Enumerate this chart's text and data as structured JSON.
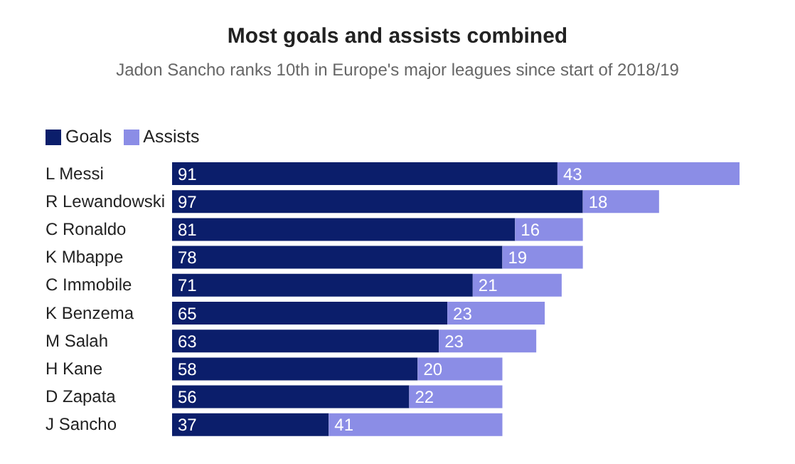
{
  "chart_data": {
    "type": "bar",
    "orientation": "horizontal",
    "stacked": true,
    "title": "Most goals and assists combined",
    "subtitle": "Jadon Sancho ranks 10th in Europe's major leagues since start of 2018/19",
    "categories": [
      "L Messi",
      "R Lewandowski",
      "C Ronaldo",
      "K Mbappe",
      "C Immobile",
      "K Benzema",
      "M Salah",
      "H Kane",
      "D Zapata",
      "J Sancho"
    ],
    "series": [
      {
        "name": "Goals",
        "color": "#0b1e6b",
        "values": [
          91,
          97,
          81,
          78,
          71,
          65,
          63,
          58,
          56,
          37
        ]
      },
      {
        "name": "Assists",
        "color": "#8b8de6",
        "values": [
          43,
          18,
          16,
          19,
          21,
          23,
          23,
          20,
          22,
          41
        ]
      }
    ],
    "data_labels": true,
    "legend": "top left",
    "grid": false
  }
}
